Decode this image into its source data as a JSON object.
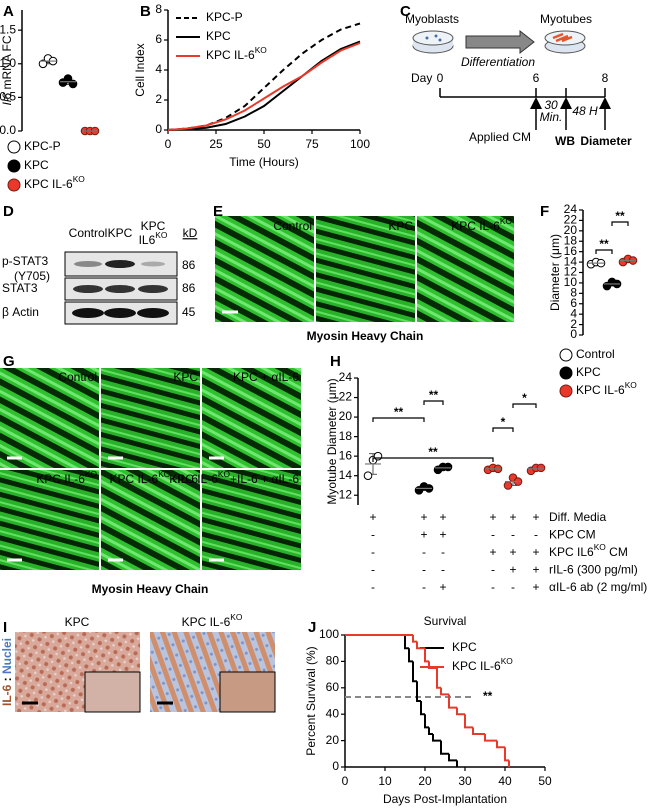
{
  "chart_data": [
    {
      "label": "A",
      "type": "dot",
      "ylabel": [
        {
          "text": "Il6",
          "italic": true
        },
        {
          "text": " mRNA FC"
        }
      ],
      "ylim": [
        0,
        1.8
      ],
      "yticks": [
        {
          "value": 0,
          "label": "0.0"
        },
        0.5,
        {
          "value": 1,
          "label": "1.0"
        },
        1.5
      ],
      "legend": true,
      "series": [
        {
          "name": "KPC-P",
          "color": "#ffffff",
          "values": [
            1.0,
            1.08,
            1.04
          ]
        },
        {
          "name": "KPC",
          "color": "#000000",
          "values": [
            0.72,
            0.78,
            0.7
          ]
        },
        {
          "name": [
            {
              "text": "KPC IL-6"
            },
            {
              "text": "KO",
              "sup": true
            }
          ],
          "color": "#e8392b",
          "values": [
            0,
            0,
            0
          ]
        }
      ]
    },
    {
      "label": "B",
      "type": "line",
      "xlabel": "Time (Hours)",
      "ylabel": "Cell Index",
      "x": [
        0,
        10,
        20,
        30,
        40,
        50,
        60,
        70,
        80,
        90,
        100
      ],
      "xlim": [
        0,
        100
      ],
      "xticks": [
        0,
        25,
        50,
        75,
        100
      ],
      "ylim": [
        0,
        8
      ],
      "yticks": [
        0,
        2,
        4,
        6,
        8
      ],
      "legend": true,
      "series": [
        {
          "name": "KPC-P",
          "color": "#000000",
          "dashed": true,
          "values": [
            0,
            0.1,
            0.3,
            0.8,
            1.6,
            2.8,
            4.0,
            5.1,
            6.0,
            6.7,
            7.1
          ]
        },
        {
          "name": "KPC",
          "color": "#000000",
          "values": [
            0,
            0.05,
            0.15,
            0.4,
            0.9,
            1.6,
            2.6,
            3.6,
            4.6,
            5.4,
            5.9
          ]
        },
        {
          "name": [
            {
              "text": "KPC IL-6"
            },
            {
              "text": "KO",
              "sup": true
            }
          ],
          "color": "#e8392b",
          "values": [
            0,
            0.1,
            0.3,
            0.7,
            1.3,
            2.1,
            2.9,
            3.6,
            4.5,
            5.3,
            5.8
          ]
        }
      ]
    },
    {
      "label": "F",
      "type": "dot",
      "ylabel": "Diameter (μm)",
      "ylim": [
        0,
        24
      ],
      "yticks": [
        0,
        2,
        4,
        6,
        8,
        10,
        12,
        14,
        16,
        18,
        20,
        22,
        24
      ],
      "legend": true,
      "series": [
        {
          "name": "Control",
          "color": "#ffffff",
          "values": [
            13.6,
            14.0,
            13.8
          ]
        },
        {
          "name": "KPC",
          "color": "#000000",
          "values": [
            9.4,
            10.2,
            9.8
          ]
        },
        {
          "name": [
            {
              "text": "KPC IL-6"
            },
            {
              "text": "KO",
              "sup": true
            }
          ],
          "color": "#e8392b",
          "values": [
            14.0,
            14.6,
            14.3
          ]
        }
      ],
      "annotations": [
        {
          "text": "**",
          "groups": [
            0,
            1
          ]
        },
        {
          "text": "**",
          "groups": [
            1,
            2
          ]
        }
      ]
    },
    {
      "label": "H",
      "type": "dot",
      "ylabel": "Myotube Diameter (μm)",
      "ylim": [
        11,
        24
      ],
      "yticks": [
        12,
        14,
        16,
        18,
        20,
        22,
        24
      ],
      "series": [
        {
          "color": "#ffffff",
          "values": [
            14.0,
            15.6,
            16.0
          ]
        },
        {
          "color": "#000000",
          "values": [
            12.5,
            12.9,
            12.7
          ]
        },
        {
          "color": "#000000",
          "values": [
            14.6,
            14.9,
            14.9
          ]
        },
        {
          "color": "#e8392b",
          "values": [
            14.6,
            14.8,
            14.7
          ]
        },
        {
          "color": "#e8392b",
          "values": [
            13.0,
            13.8,
            13.4
          ]
        },
        {
          "color": "#e8392b",
          "values": [
            14.5,
            14.8,
            14.8
          ]
        }
      ],
      "annotations": [
        {
          "text": "**",
          "groups": [
            0,
            1
          ]
        },
        {
          "text": "**",
          "groups": [
            1,
            2
          ]
        },
        {
          "text": "**",
          "groups": [
            0,
            3
          ]
        },
        {
          "text": "*",
          "groups": [
            3,
            4
          ]
        },
        {
          "text": "*",
          "groups": [
            4,
            5
          ]
        }
      ],
      "conditions": [
        {
          "label": "Diff. Media",
          "marks": [
            "+",
            "+",
            "+",
            "+",
            "+",
            "+"
          ]
        },
        {
          "label": "KPC CM",
          "marks": [
            "-",
            "+",
            "+",
            "-",
            "-",
            "-"
          ]
        },
        {
          "label": [
            {
              "text": "KPC IL6"
            },
            {
              "text": "KO",
              "sup": true
            },
            {
              "text": " CM"
            }
          ],
          "marks": [
            "-",
            "-",
            "-",
            "+",
            "+",
            "+"
          ]
        },
        {
          "label": "rIL-6 (300 pg/ml)",
          "marks": [
            "-",
            "-",
            "-",
            "-",
            "+",
            "+"
          ]
        },
        {
          "label": "αIL-6 ab (2 mg/ml)",
          "marks": [
            "-",
            "-",
            "+",
            "-",
            "-",
            "+"
          ]
        }
      ]
    },
    {
      "label": "J",
      "type": "step",
      "title": "Survival",
      "xlabel": "Days Post-Implantation",
      "ylabel": "Percent Survival (%)",
      "xlim": [
        0,
        50
      ],
      "xticks": [
        0,
        10,
        20,
        30,
        40,
        50
      ],
      "ylim": [
        0,
        100
      ],
      "yticks": [
        0,
        20,
        40,
        60,
        80,
        100
      ],
      "legend": true,
      "hline": {
        "value": 53,
        "label": "**"
      },
      "series": [
        {
          "name": "KPC",
          "color": "#000000",
          "x": [
            0,
            15,
            16,
            17,
            18,
            19,
            20,
            21,
            22,
            24,
            26,
            28
          ],
          "values": [
            100,
            90,
            80,
            65,
            50,
            40,
            30,
            25,
            20,
            10,
            5,
            0
          ]
        },
        {
          "name": [
            {
              "text": "KPC IL-6"
            },
            {
              "text": "KO",
              "sup": true
            }
          ],
          "color": "#e8392b",
          "x": [
            0,
            17,
            18,
            20,
            21,
            23,
            24,
            26,
            28,
            30,
            32,
            35,
            38,
            40,
            41
          ],
          "values": [
            100,
            95,
            90,
            80,
            75,
            60,
            55,
            45,
            40,
            30,
            25,
            20,
            15,
            5,
            0
          ]
        }
      ]
    }
  ],
  "diagram": {
    "label": "C",
    "myoblasts": "Myoblasts",
    "myotubes": "Myotubes",
    "differentiation": "Differentiation",
    "day": "Day",
    "day0": "0",
    "day6": "6",
    "day8": "8",
    "min": [
      {
        "text": "30"
      }
    ],
    "min2": "Min.",
    "hours": "48 H",
    "applied": "Applied CM",
    "wb": "WB",
    "diameter": "Diameter"
  },
  "blot": {
    "label": "D",
    "col1": "Control",
    "col2": "KPC",
    "col3a": "KPC",
    "col3b": [
      {
        "text": "IL6"
      },
      {
        "text": "KO",
        "sup": true
      }
    ],
    "kd": "kD",
    "row1": "p-STAT3",
    "row1b": "(Y705)",
    "row2": "STAT3",
    "row3": "β Actin",
    "w1": "86",
    "w2": "86",
    "w3": "45"
  },
  "images_e": {
    "label": "E",
    "panels": [
      "Control",
      "KPC",
      [
        {
          "text": "KPC IL-6"
        },
        {
          "text": "KO",
          "sup": true
        }
      ]
    ],
    "caption": "Myosin Heavy Chain"
  },
  "images_g": {
    "label": "G",
    "panels": [
      "Control",
      "KPC",
      "KPC + αIL-6",
      [
        {
          "text": "KPC IL-6"
        },
        {
          "text": "KO",
          "sup": true
        }
      ],
      [
        {
          "text": "KPC IL-6"
        },
        {
          "text": "KO",
          "sup": true
        },
        {
          "text": "+IL-6"
        }
      ],
      [
        {
          "text": "KPC IL-6"
        },
        {
          "text": "KO",
          "sup": true
        },
        {
          "text": "+IL-6 + αIL-6"
        }
      ]
    ],
    "caption": "Myosin Heavy Chain"
  },
  "images_i": {
    "label": "I",
    "panels": [
      "KPC",
      [
        {
          "text": "KPC IL-6"
        },
        {
          "text": "KO",
          "sup": true
        }
      ]
    ],
    "side": [
      {
        "text": "IL-6",
        "color": "#a0522d"
      },
      {
        "text": " : "
      },
      {
        "text": "Nuclei",
        "color": "#4a78c2"
      }
    ]
  }
}
